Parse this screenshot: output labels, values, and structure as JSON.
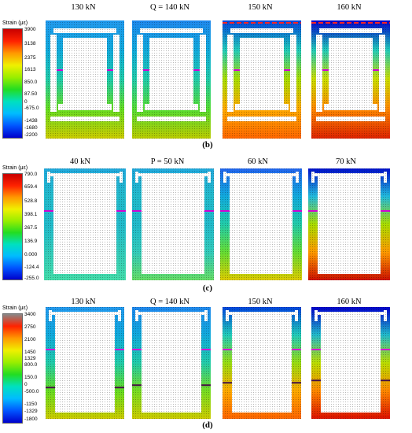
{
  "colors": {
    "strain_scale": [
      "#0000cc",
      "#0055ff",
      "#00bbff",
      "#00e0c0",
      "#22dd22",
      "#99ee00",
      "#f0f000",
      "#ff9900",
      "#ff2200",
      "#c80000"
    ],
    "strain_scale_top_d": [
      "#0000cc",
      "#0055ff",
      "#00bbff",
      "#00e0c0",
      "#22dd22",
      "#99ee00",
      "#f0f000",
      "#ff9900",
      "#ff2200",
      "#888888"
    ],
    "marker_line_magenta": "#d400d4",
    "marker_line_dark": "#441144",
    "marker_line_red": "#ff2222"
  },
  "panels": [
    {
      "id": "b",
      "letter": "(b)",
      "scale_title": "Strain (με)",
      "ticks": [
        "3900",
        "3138",
        "2375",
        "1613",
        "850.0",
        "87.50",
        "0",
        "-675.0",
        "-1438",
        "-1680",
        "-2200"
      ],
      "loads": [
        "130 kN",
        "Q = 140 kN",
        "150 kN",
        "160 kN"
      ],
      "shape": "full-frame"
    },
    {
      "id": "c",
      "letter": "(c)",
      "scale_title": "Strain (με)",
      "ticks": [
        "790.0",
        "659.4",
        "528.8",
        "398.1",
        "267.5",
        "136.9",
        "0.000",
        "-124.4",
        "-255.0"
      ],
      "loads": [
        "40 kN",
        "P = 50 kN",
        "60 kN",
        "70 kN"
      ],
      "shape": "open-frame"
    },
    {
      "id": "d",
      "letter": "(d)",
      "scale_title": "Strain (με)",
      "ticks": [
        "3400",
        "2750",
        "2100",
        "1450",
        "1329",
        "800.0",
        "150.0",
        "0",
        "-500.0",
        "-1150",
        "-1329",
        "-1800"
      ],
      "loads": [
        "130 kN",
        "Q = 140 kN",
        "150 kN",
        "160 kN"
      ],
      "shape": "open-frame"
    }
  ]
}
